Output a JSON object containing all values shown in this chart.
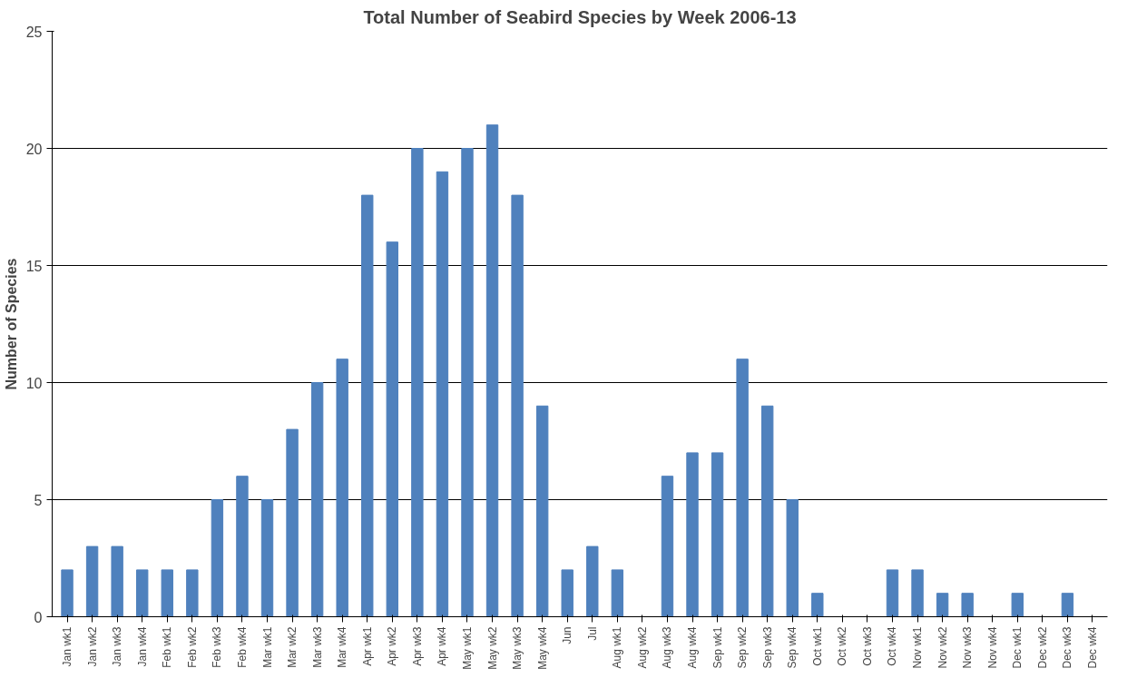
{
  "chart_data": {
    "type": "bar",
    "title": "Total Number of Seabird Species by Week 2006-13",
    "ylabel": "Number of Species",
    "categories": [
      "Jan wk1",
      "Jan wk2",
      "Jan wk3",
      "Jan wk4",
      "Feb wk1",
      "Feb wk2",
      "Feb wk3",
      "Feb wk4",
      "Mar wk1",
      "Mar wk2",
      "Mar wk3",
      "Mar wk4",
      "Apr wk1",
      "Apr wk2",
      "Apr wk3",
      "Apr wk4",
      "May wk1",
      "May wk2",
      "May wk3",
      "May wk4",
      "Jun",
      "Jul",
      "Aug wk1",
      "Aug wk2",
      "Aug wk3",
      "Aug wk4",
      "Sep wk1",
      "Sep wk2",
      "Sep wk3",
      "Sep wk4",
      "Oct wk1",
      "Oct wk2",
      "Oct wk3",
      "Oct wk4",
      "Nov wk1",
      "Nov wk2",
      "Nov wk3",
      "Nov wk4",
      "Dec wk1",
      "Dec wk2",
      "Dec wk3",
      "Dec wk4"
    ],
    "values": [
      2,
      3,
      3,
      2,
      2,
      2,
      5,
      6,
      5,
      8,
      10,
      11,
      18,
      16,
      20,
      19,
      20,
      21,
      18,
      9,
      2,
      3,
      2,
      0,
      6,
      7,
      7,
      11,
      9,
      5,
      1,
      0,
      0,
      2,
      2,
      1,
      1,
      0,
      1,
      0,
      1,
      0
    ],
    "color": "#4f81bd",
    "ylim": [
      0,
      25
    ],
    "yticks": [
      0,
      5,
      10,
      15,
      20,
      25
    ],
    "grid": "y"
  }
}
